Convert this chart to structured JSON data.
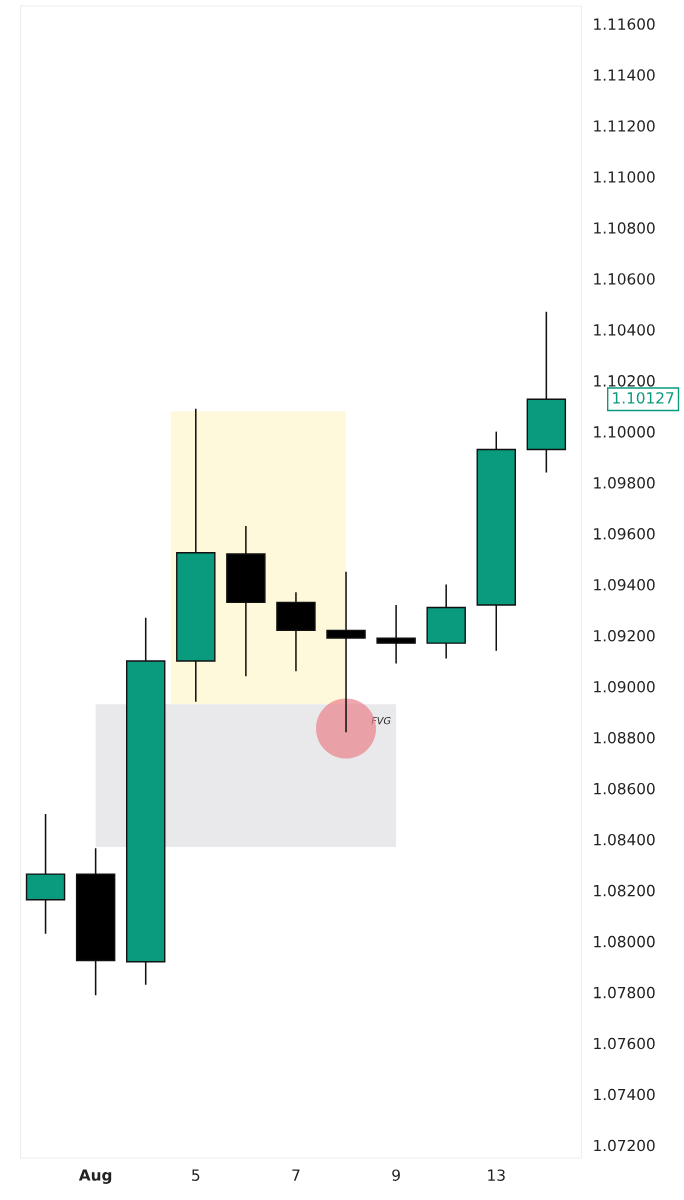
{
  "chart_data": {
    "type": "candlestick",
    "categories": [
      null,
      "Aug",
      null,
      "5",
      null,
      "7",
      null,
      "9",
      null,
      "13",
      null
    ],
    "ohlc": [
      [
        1.08163,
        1.085,
        1.0803,
        1.08264
      ],
      [
        1.08264,
        1.08365,
        1.07789,
        1.07925
      ],
      [
        1.0792,
        1.0927,
        1.0783,
        1.091
      ],
      [
        1.091,
        1.1009,
        1.0894,
        1.09525
      ],
      [
        1.0952,
        1.0963,
        1.0904,
        1.0933
      ],
      [
        1.0933,
        1.0937,
        1.0906,
        1.0922
      ],
      [
        1.0922,
        1.0945,
        1.0882,
        1.0919
      ],
      [
        1.0919,
        1.0932,
        1.0909,
        1.0917
      ],
      [
        1.0917,
        1.094,
        1.0911,
        1.0931
      ],
      [
        1.0932,
        1.1,
        1.0914,
        1.0993
      ],
      [
        1.0993,
        1.1047,
        1.0984,
        1.10127
      ]
    ],
    "colors": [
      "#0a9a7e",
      "#000000",
      "#0a9a7e",
      "#0a9a7e",
      "#000000",
      "#000000",
      "#000000",
      "#000000",
      "#0a9a7e",
      "#0a9a7e",
      "#0a9a7e"
    ],
    "ylim": [
      1.0715,
      1.1167
    ],
    "yticks": [
      {
        "value": 1.072,
        "label": "1.07200"
      },
      {
        "value": 1.074,
        "label": "1.07400"
      },
      {
        "value": 1.076,
        "label": "1.07600"
      },
      {
        "value": 1.078,
        "label": "1.07800"
      },
      {
        "value": 1.08,
        "label": "1.08000"
      },
      {
        "value": 1.082,
        "label": "1.08200"
      },
      {
        "value": 1.084,
        "label": "1.08400"
      },
      {
        "value": 1.086,
        "label": "1.08600"
      },
      {
        "value": 1.088,
        "label": "1.08800"
      },
      {
        "value": 1.09,
        "label": "1.09000"
      },
      {
        "value": 1.092,
        "label": "1.09200"
      },
      {
        "value": 1.094,
        "label": "1.09400"
      },
      {
        "value": 1.096,
        "label": "1.09600"
      },
      {
        "value": 1.098,
        "label": "1.09800"
      },
      {
        "value": 1.1,
        "label": "1.10000"
      },
      {
        "value": 1.102,
        "label": "1.10200"
      },
      {
        "value": 1.104,
        "label": "1.10400"
      },
      {
        "value": 1.106,
        "label": "1.10600"
      },
      {
        "value": 1.108,
        "label": "1.10800"
      },
      {
        "value": 1.11,
        "label": "1.11000"
      },
      {
        "value": 1.112,
        "label": "1.11200"
      },
      {
        "value": 1.114,
        "label": "1.11400"
      },
      {
        "value": 1.116,
        "label": "1.11600"
      }
    ],
    "bands": [
      {
        "axis": "y",
        "from": 1.0893,
        "to": 1.1008,
        "color": "#fff9dc"
      },
      {
        "axis": "y",
        "from": 1.0837,
        "to": 1.0893,
        "color": "#e9e9eb",
        "label": "FVG"
      }
    ],
    "annotations": [
      "1.10127"
    ],
    "grid": false,
    "legend": false
  }
}
